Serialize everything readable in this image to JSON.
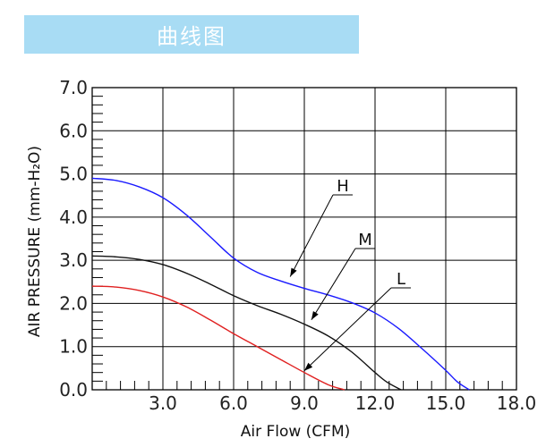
{
  "header": {
    "title": "曲线图"
  },
  "chart_data": {
    "type": "line",
    "title": "",
    "xlabel": "Air Flow (CFM)",
    "ylabel": "AIR PRESSURE (mm-H₂O)",
    "xlim": [
      0,
      18
    ],
    "ylim": [
      0,
      7
    ],
    "xticks": [
      "3.0",
      "6.0",
      "9.0",
      "12.0",
      "15.0",
      "18.0"
    ],
    "yticks": [
      "0.0",
      "1.0",
      "2.0",
      "3.0",
      "4.0",
      "5.0",
      "6.0",
      "7.0"
    ],
    "grid": true,
    "series": [
      {
        "name": "H",
        "color": "#1a1aff",
        "x": [
          0,
          1,
          2,
          3,
          4,
          5,
          6,
          7,
          8,
          9,
          10,
          11,
          12,
          13,
          14,
          15,
          15.5,
          16
        ],
        "values": [
          4.9,
          4.85,
          4.7,
          4.45,
          4.05,
          3.55,
          3.05,
          2.72,
          2.52,
          2.35,
          2.2,
          2.02,
          1.78,
          1.42,
          0.95,
          0.45,
          0.18,
          0.0
        ]
      },
      {
        "name": "M",
        "color": "#111111",
        "x": [
          0,
          1,
          2,
          3,
          4,
          5,
          6,
          7,
          8,
          9,
          10,
          11,
          12,
          12.5,
          13.1
        ],
        "values": [
          3.1,
          3.08,
          3.02,
          2.9,
          2.7,
          2.45,
          2.18,
          1.95,
          1.75,
          1.52,
          1.25,
          0.88,
          0.4,
          0.18,
          0.0
        ]
      },
      {
        "name": "L",
        "color": "#e02020",
        "x": [
          0,
          1,
          2,
          3,
          4,
          5,
          6,
          7,
          8,
          9,
          10,
          10.7
        ],
        "values": [
          2.4,
          2.38,
          2.3,
          2.15,
          1.92,
          1.62,
          1.3,
          1.0,
          0.7,
          0.4,
          0.12,
          0.0
        ]
      }
    ]
  }
}
